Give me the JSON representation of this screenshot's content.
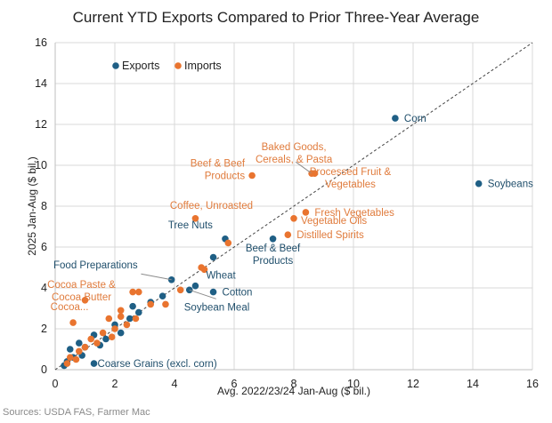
{
  "chart_data": {
    "type": "scatter",
    "title": "Current YTD Exports Compared to Prior Three-Year Average",
    "xlabel": "Avg. 2022/23/24 Jan-Aug ($ bil.)",
    "ylabel": "2025 Jan-Aug ($ bil.)",
    "xlim": [
      0,
      16
    ],
    "ylim": [
      0,
      16
    ],
    "xticks": [
      "0",
      "2",
      "4",
      "6",
      "8",
      "10",
      "12",
      "14",
      "16"
    ],
    "yticks": [
      "0",
      "2",
      "4",
      "6",
      "8",
      "10",
      "12",
      "14",
      "16"
    ],
    "grid": true,
    "reference_line": "y = x (dashed)",
    "legend": {
      "position": "top-left",
      "entries": [
        "Exports",
        "Imports"
      ]
    },
    "colors": {
      "Exports": "#1f5f85",
      "Imports": "#e9742f"
    },
    "source": "Sources: USDA FAS, Farmer Mac",
    "series": [
      {
        "name": "Exports",
        "points": [
          {
            "x": 11.4,
            "y": 12.3,
            "label": "Corn"
          },
          {
            "x": 14.2,
            "y": 9.1,
            "label": "Soybeans"
          },
          {
            "x": 5.7,
            "y": 6.4,
            "label": "Tree Nuts"
          },
          {
            "x": 7.3,
            "y": 6.4,
            "label": "Beef & Beef Products"
          },
          {
            "x": 3.9,
            "y": 4.4,
            "label": "Food Preparations"
          },
          {
            "x": 4.7,
            "y": 4.1,
            "label": "Wheat"
          },
          {
            "x": 5.3,
            "y": 3.8,
            "label": "Cotton"
          },
          {
            "x": 4.5,
            "y": 3.9,
            "label": "Soybean Meal"
          },
          {
            "x": 1.3,
            "y": 0.3,
            "label": "Coarse Grains (excl. corn)"
          },
          {
            "x": 5.3,
            "y": 5.5
          },
          {
            "x": 3.6,
            "y": 3.6
          },
          {
            "x": 3.2,
            "y": 3.3
          },
          {
            "x": 2.8,
            "y": 2.8
          },
          {
            "x": 2.5,
            "y": 2.5
          },
          {
            "x": 2.0,
            "y": 2.2
          },
          {
            "x": 1.7,
            "y": 1.5
          },
          {
            "x": 1.3,
            "y": 1.7
          },
          {
            "x": 1.0,
            "y": 1.1
          },
          {
            "x": 0.8,
            "y": 1.3
          },
          {
            "x": 0.5,
            "y": 1.0
          },
          {
            "x": 0.6,
            "y": 0.6
          },
          {
            "x": 0.4,
            "y": 0.4
          },
          {
            "x": 0.3,
            "y": 0.2
          },
          {
            "x": 0.9,
            "y": 0.7
          },
          {
            "x": 2.2,
            "y": 1.8
          },
          {
            "x": 2.6,
            "y": 3.1
          },
          {
            "x": 1.5,
            "y": 1.2
          }
        ]
      },
      {
        "name": "Imports",
        "points": [
          {
            "x": 6.6,
            "y": 9.5,
            "label": "Beef & Beef Products"
          },
          {
            "x": 8.6,
            "y": 9.6,
            "label": "Baked Goods, Cereals, & Pasta"
          },
          {
            "x": 8.7,
            "y": 9.6,
            "label": "Processed Fruit & Vegetables"
          },
          {
            "x": 4.7,
            "y": 7.4,
            "label": "Coffee, Unroasted"
          },
          {
            "x": 8.4,
            "y": 7.7,
            "label": "Fresh Vegetables"
          },
          {
            "x": 8.0,
            "y": 7.4,
            "label": "Vegetable Oils"
          },
          {
            "x": 7.8,
            "y": 6.6,
            "label": "Distilled Spirits"
          },
          {
            "x": 1.0,
            "y": 3.4,
            "label": "Cocoa Paste & Cocoa Butter"
          },
          {
            "x": 0.6,
            "y": 2.3,
            "label": "Cocoa..."
          },
          {
            "x": 5.8,
            "y": 6.2
          },
          {
            "x": 4.9,
            "y": 5.0
          },
          {
            "x": 5.0,
            "y": 4.9
          },
          {
            "x": 4.2,
            "y": 3.9
          },
          {
            "x": 2.6,
            "y": 3.8
          },
          {
            "x": 2.8,
            "y": 3.8
          },
          {
            "x": 3.2,
            "y": 3.2
          },
          {
            "x": 3.7,
            "y": 3.2
          },
          {
            "x": 2.2,
            "y": 2.9
          },
          {
            "x": 2.2,
            "y": 2.6
          },
          {
            "x": 2.7,
            "y": 2.5
          },
          {
            "x": 1.8,
            "y": 2.5
          },
          {
            "x": 2.0,
            "y": 2.0
          },
          {
            "x": 1.6,
            "y": 1.8
          },
          {
            "x": 1.2,
            "y": 1.5
          },
          {
            "x": 1.0,
            "y": 1.1
          },
          {
            "x": 0.8,
            "y": 0.9
          },
          {
            "x": 0.5,
            "y": 0.6
          },
          {
            "x": 0.4,
            "y": 0.3
          },
          {
            "x": 1.4,
            "y": 1.3
          },
          {
            "x": 0.7,
            "y": 0.5
          },
          {
            "x": 1.9,
            "y": 1.6
          },
          {
            "x": 2.4,
            "y": 2.2
          }
        ]
      }
    ]
  }
}
